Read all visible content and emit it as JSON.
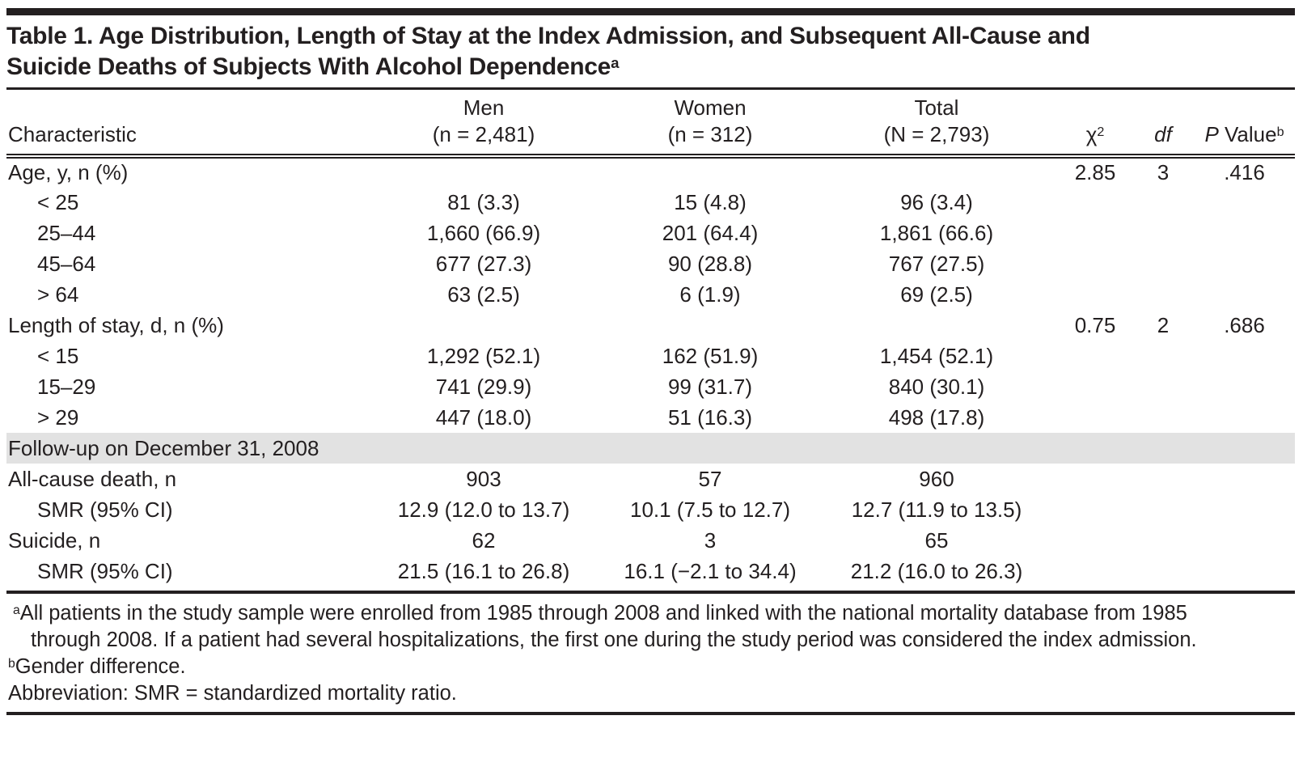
{
  "colors": {
    "text": "#231f20",
    "rules": "#231f20",
    "shaded_row_background": "#e2e2e2",
    "page_background": "#ffffff"
  },
  "title": {
    "line1": "Table 1. Age Distribution, Length of Stay at the Index Admission, and Subsequent All-Cause and",
    "line2": "Suicide Deaths of Subjects With Alcohol Dependence",
    "superscript": "a"
  },
  "columns": {
    "characteristic": "Characteristic",
    "men": {
      "group": "Men",
      "sub": "(n = 2,481)"
    },
    "women": {
      "group": "Women",
      "sub": "(n = 312)"
    },
    "total": {
      "group": "Total",
      "sub": "(N = 2,793)"
    },
    "chi2": {
      "base": "χ",
      "sup": "2"
    },
    "df": "df",
    "pvalue": {
      "italic": "P",
      "rest": " Value",
      "sup": "b"
    }
  },
  "rows": [
    {
      "label": "Age, y, n (%)",
      "men": "",
      "women": "",
      "total": "",
      "chi2": "2.85",
      "df": "3",
      "p": ".416"
    },
    {
      "label": "< 25",
      "men": "81 (3.3)",
      "women": "15 (4.8)",
      "total": "96 (3.4)",
      "chi2": "",
      "df": "",
      "p": ""
    },
    {
      "label": "25–44",
      "men": "1,660 (66.9)",
      "women": "201 (64.4)",
      "total": "1,861 (66.6)",
      "chi2": "",
      "df": "",
      "p": ""
    },
    {
      "label": "45–64",
      "men": "677 (27.3)",
      "women": "90 (28.8)",
      "total": "767 (27.5)",
      "chi2": "",
      "df": "",
      "p": ""
    },
    {
      "label": "> 64",
      "men": "63 (2.5)",
      "women": "6 (1.9)",
      "total": "69 (2.5)",
      "chi2": "",
      "df": "",
      "p": ""
    },
    {
      "label": "Length of stay, d, n (%)",
      "men": "",
      "women": "",
      "total": "",
      "chi2": "0.75",
      "df": "2",
      "p": ".686"
    },
    {
      "label": "< 15",
      "men": "1,292 (52.1)",
      "women": "162 (51.9)",
      "total": "1,454 (52.1)",
      "chi2": "",
      "df": "",
      "p": ""
    },
    {
      "label": "15–29",
      "men": "741 (29.9)",
      "women": "99 (31.7)",
      "total": "840 (30.1)",
      "chi2": "",
      "df": "",
      "p": ""
    },
    {
      "label": "> 29",
      "men": "447 (18.0)",
      "women": "51 (16.3)",
      "total": "498 (17.8)",
      "chi2": "",
      "df": "",
      "p": ""
    },
    {
      "label": "Follow-up on December 31, 2008"
    },
    {
      "label": "All-cause death, n",
      "men": "903",
      "women": "57",
      "total": "960",
      "chi2": "",
      "df": "",
      "p": ""
    },
    {
      "label": "SMR (95% CI)",
      "men": "12.9 (12.0 to 13.7)",
      "women": "10.1 (7.5 to 12.7)",
      "total": "12.7 (11.9 to 13.5)",
      "chi2": "",
      "df": "",
      "p": ""
    },
    {
      "label": "Suicide, n",
      "men": "62",
      "women": "3",
      "total": "65",
      "chi2": "",
      "df": "",
      "p": ""
    },
    {
      "label": "SMR (95% CI)",
      "men": "21.5 (16.1 to 26.8)",
      "women": "16.1 (−2.1 to 34.4)",
      "total": "21.2 (16.0 to 26.3)",
      "chi2": "",
      "df": "",
      "p": ""
    }
  ],
  "footnotes": {
    "a": {
      "sup": "a",
      "text": "All patients in the study sample were enrolled from 1985 through 2008 and linked with the national mortality database from 1985 through 2008. If a patient had several hospitalizations, the first one during the study period was considered the index admission."
    },
    "b": {
      "sup": "b",
      "text": "Gender difference."
    },
    "abbreviation": "Abbreviation: SMR = standardized mortality ratio."
  }
}
